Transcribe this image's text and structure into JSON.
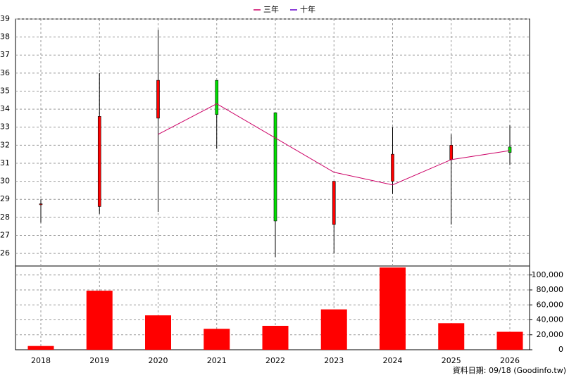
{
  "chart_data": {
    "type": "candlestick",
    "categories": [
      "2018",
      "2019",
      "2020",
      "2021",
      "2022",
      "2023",
      "2024",
      "2025",
      "2026"
    ],
    "open": [
      28.7,
      28.6,
      33.5,
      35.6,
      33.8,
      27.6,
      30.0,
      31.2,
      31.9
    ],
    "high": [
      29.0,
      36.0,
      38.4,
      35.6,
      33.8,
      30.0,
      33.0,
      32.6,
      33.1
    ],
    "low": [
      27.7,
      28.2,
      28.3,
      31.8,
      25.8,
      26.0,
      29.3,
      27.6,
      30.9
    ],
    "close": [
      28.75,
      33.6,
      35.6,
      33.7,
      27.8,
      30.0,
      31.5,
      32.0,
      31.6
    ],
    "up_color": "#ff0000",
    "down_color": "#00e000",
    "series": [
      {
        "name": "三年",
        "color": "#cc0066",
        "values": [
          null,
          null,
          32.6,
          34.3,
          32.4,
          30.5,
          29.8,
          31.2,
          31.7
        ]
      },
      {
        "name": "十年",
        "color": "#6600cc",
        "values": [
          null,
          null,
          null,
          null,
          null,
          null,
          null,
          null,
          null
        ]
      }
    ],
    "ylim": [
      25.3,
      39
    ],
    "yticks": [
      26,
      27,
      28,
      29,
      30,
      31,
      32,
      33,
      34,
      35,
      36,
      37,
      38,
      39
    ],
    "grid": true,
    "volume": {
      "type": "bar",
      "color": "#ff0000",
      "values": [
        5000,
        79000,
        46000,
        28000,
        32000,
        54000,
        110000,
        35500,
        24000
      ],
      "ylim": [
        0,
        112000
      ],
      "yticks": [
        0,
        {
          "value": 20000,
          "label": "20,000"
        },
        {
          "value": 40000,
          "label": "40,000"
        },
        {
          "value": 60000,
          "label": "60,000"
        },
        {
          "value": 80000,
          "label": "80,000"
        },
        {
          "value": 100000,
          "label": "100,000"
        }
      ]
    },
    "source_note": "資料日期: 09/18  (Goodinfo.tw)"
  }
}
